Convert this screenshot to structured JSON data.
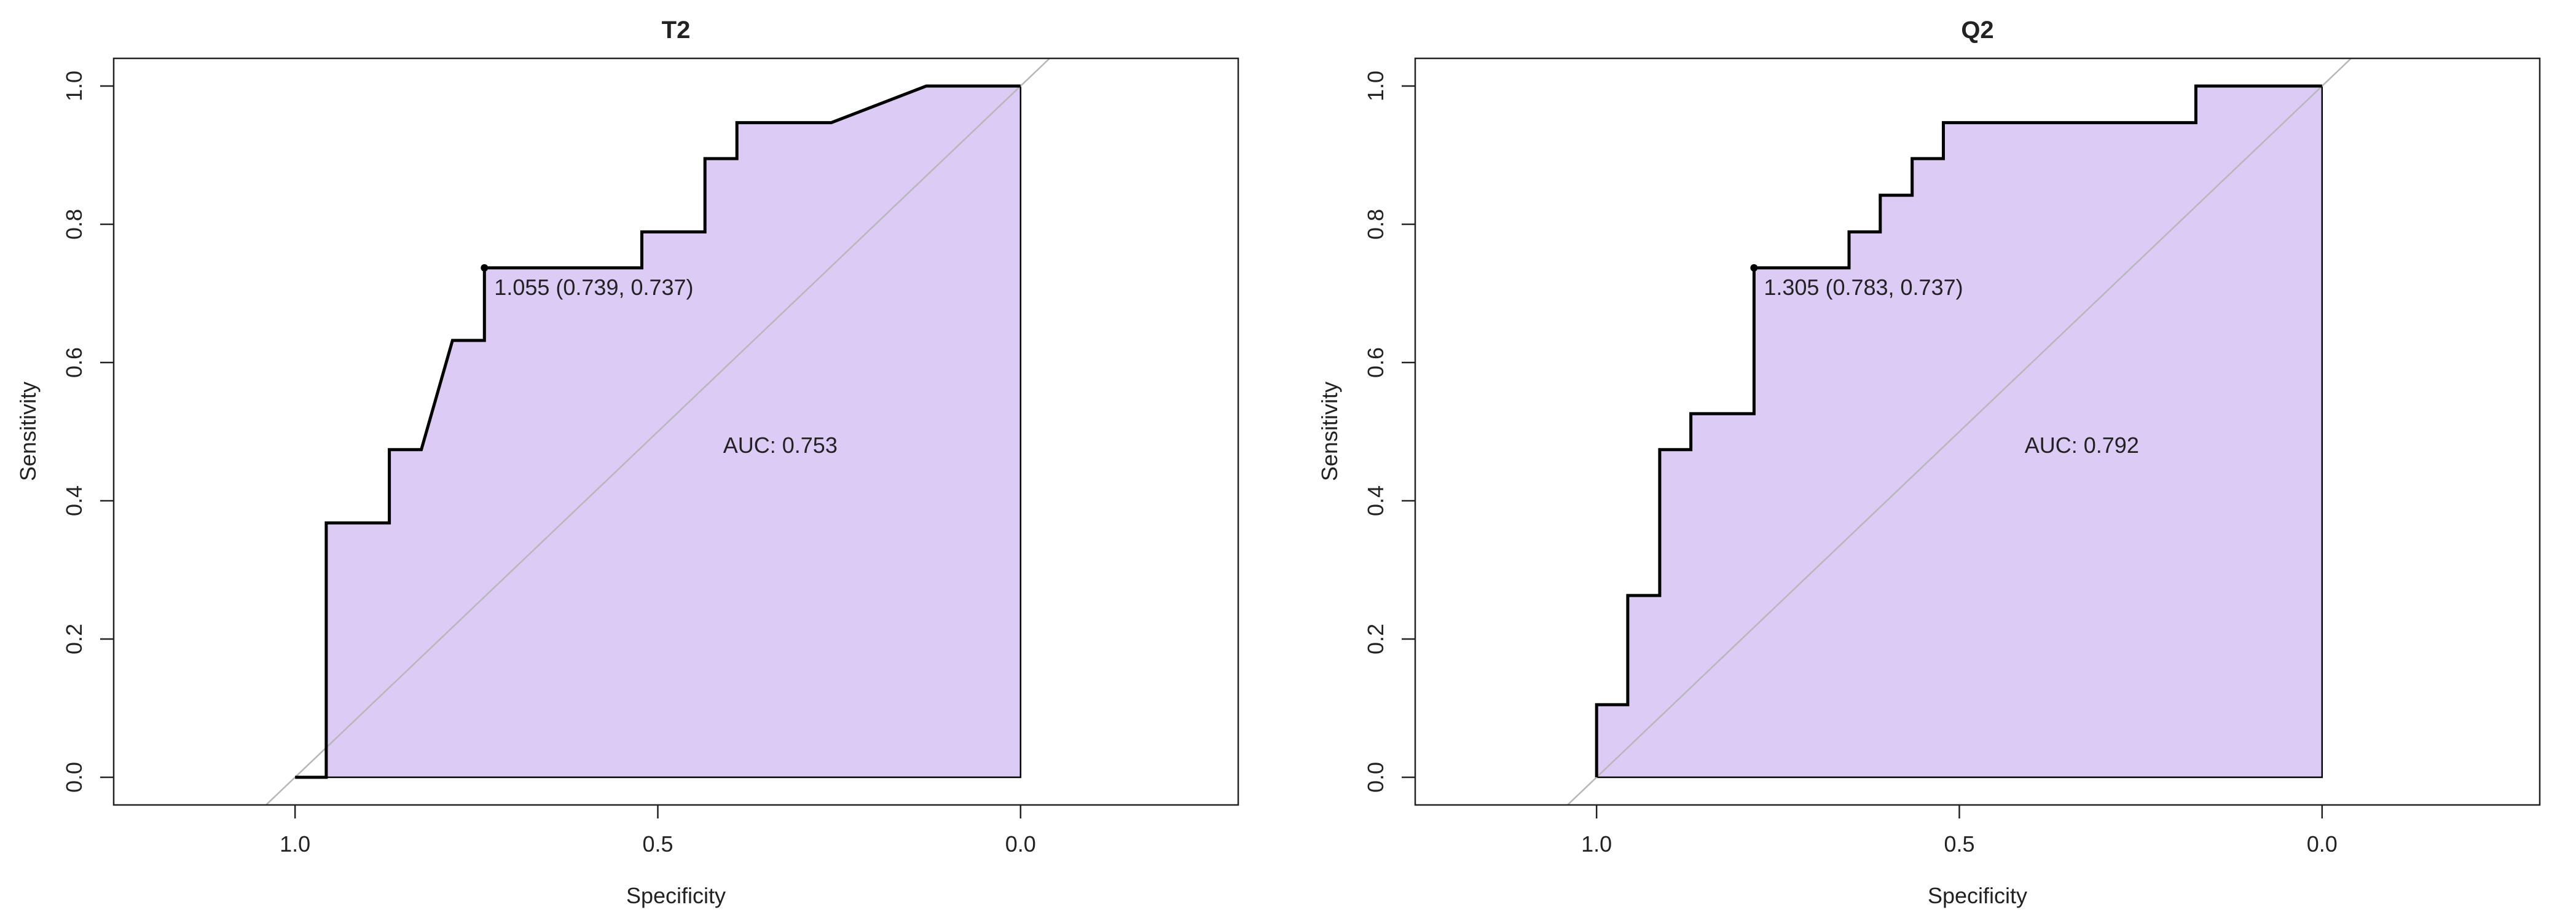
{
  "colors": {
    "fill": "#dccbf4",
    "curve": "#000000",
    "diagonal": "#b7b7b7",
    "frame": "#222222",
    "text": "#222222"
  },
  "chart_data": [
    {
      "type": "line",
      "title": "T2",
      "xlabel": "Specificity",
      "ylabel": "Sensitivity",
      "x_reversed": true,
      "xlim": [
        1.25,
        -0.3
      ],
      "ylim": [
        -0.04,
        1.04
      ],
      "xticks": [
        1.0,
        0.5,
        0.0
      ],
      "xtick_labels": [
        "1.0",
        "0.5",
        "0.0"
      ],
      "yticks": [
        0.0,
        0.2,
        0.4,
        0.6,
        0.8,
        1.0
      ],
      "ytick_labels": [
        "0.0",
        "0.2",
        "0.4",
        "0.6",
        "0.8",
        "1.0"
      ],
      "roc_points": [
        [
          1.0,
          0.0
        ],
        [
          0.957,
          0.0
        ],
        [
          0.957,
          0.368
        ],
        [
          0.87,
          0.368
        ],
        [
          0.87,
          0.474
        ],
        [
          0.826,
          0.474
        ],
        [
          0.783,
          0.632
        ],
        [
          0.739,
          0.632
        ],
        [
          0.739,
          0.737
        ],
        [
          0.522,
          0.737
        ],
        [
          0.522,
          0.789
        ],
        [
          0.435,
          0.789
        ],
        [
          0.435,
          0.895
        ],
        [
          0.391,
          0.895
        ],
        [
          0.391,
          0.947
        ],
        [
          0.261,
          0.947
        ],
        [
          0.13,
          1.0
        ],
        [
          0.0,
          1.0
        ]
      ],
      "best_threshold": {
        "x": 0.739,
        "y": 0.737,
        "label": "1.055 (0.739, 0.737)"
      },
      "auc": {
        "x": 0.41,
        "y": 0.48,
        "label": "AUC: 0.753"
      }
    },
    {
      "type": "line",
      "title": "Q2",
      "xlabel": "Specificity",
      "ylabel": "Sensitivity",
      "x_reversed": true,
      "xlim": [
        1.25,
        -0.3
      ],
      "ylim": [
        -0.04,
        1.04
      ],
      "xticks": [
        1.0,
        0.5,
        0.0
      ],
      "xtick_labels": [
        "1.0",
        "0.5",
        "0.0"
      ],
      "yticks": [
        0.0,
        0.2,
        0.4,
        0.6,
        0.8,
        1.0
      ],
      "ytick_labels": [
        "0.0",
        "0.2",
        "0.4",
        "0.6",
        "0.8",
        "1.0"
      ],
      "roc_points": [
        [
          1.0,
          0.0
        ],
        [
          1.0,
          0.105
        ],
        [
          0.957,
          0.105
        ],
        [
          0.957,
          0.263
        ],
        [
          0.913,
          0.263
        ],
        [
          0.913,
          0.474
        ],
        [
          0.87,
          0.474
        ],
        [
          0.87,
          0.526
        ],
        [
          0.783,
          0.526
        ],
        [
          0.783,
          0.737
        ],
        [
          0.652,
          0.737
        ],
        [
          0.652,
          0.789
        ],
        [
          0.609,
          0.789
        ],
        [
          0.609,
          0.842
        ],
        [
          0.565,
          0.842
        ],
        [
          0.565,
          0.895
        ],
        [
          0.522,
          0.895
        ],
        [
          0.522,
          0.947
        ],
        [
          0.174,
          0.947
        ],
        [
          0.174,
          1.0
        ],
        [
          0.0,
          1.0
        ]
      ],
      "best_threshold": {
        "x": 0.783,
        "y": 0.737,
        "label": "1.305 (0.783, 0.737)"
      },
      "auc": {
        "x": 0.41,
        "y": 0.48,
        "label": "AUC: 0.792"
      }
    }
  ]
}
